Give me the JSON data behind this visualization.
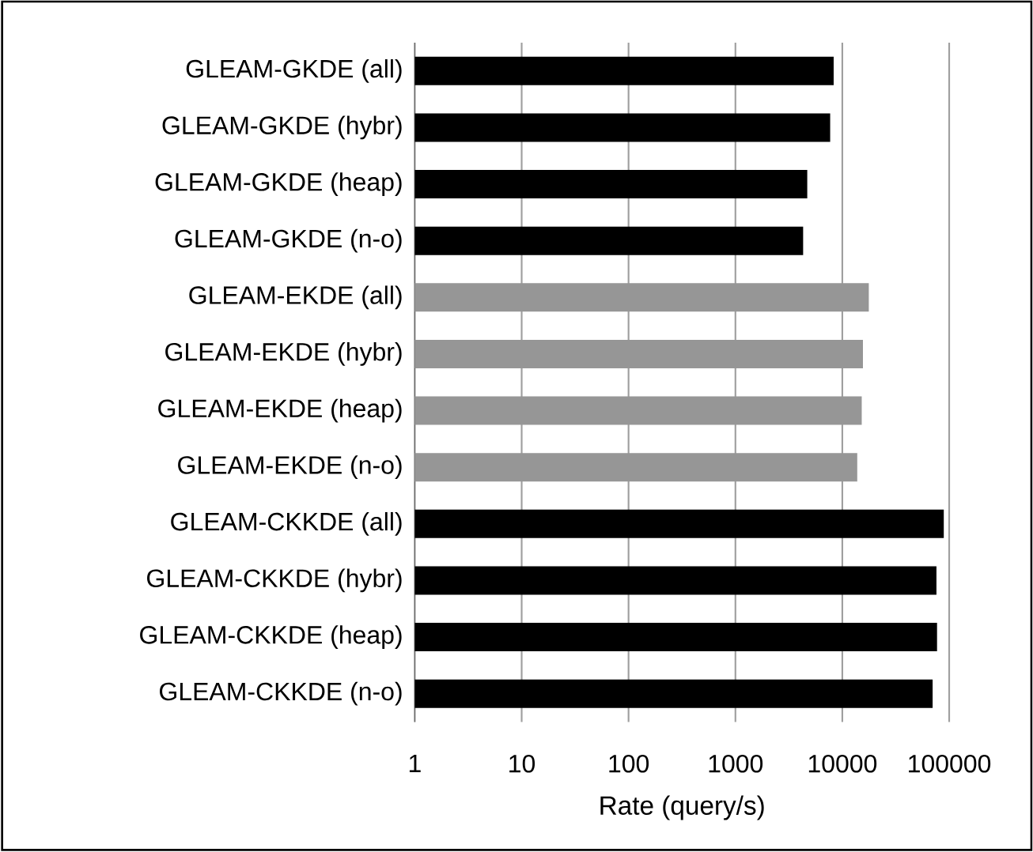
{
  "chart_data": {
    "type": "bar",
    "orientation": "horizontal",
    "xlabel": "Rate (query/s)",
    "categories": [
      "GLEAM-GKDE (all)",
      "GLEAM-GKDE (hybr)",
      "GLEAM-GKDE (heap)",
      "GLEAM-GKDE (n-o)",
      "GLEAM-EKDE (all)",
      "GLEAM-EKDE (hybr)",
      "GLEAM-EKDE (heap)",
      "GLEAM-EKDE (n-o)",
      "GLEAM-CKKDE (all)",
      "GLEAM-CKKDE (hybr)",
      "GLEAM-CKKDE (heap)",
      "GLEAM-CKKDE (n-o)"
    ],
    "values": [
      8300,
      7700,
      4700,
      4300,
      17700,
      15600,
      15200,
      13800,
      89000,
      76000,
      77000,
      70000
    ],
    "colors": [
      "#000000",
      "#000000",
      "#000000",
      "#000000",
      "#969696",
      "#969696",
      "#969696",
      "#969696",
      "#000000",
      "#000000",
      "#000000",
      "#000000"
    ],
    "log": "x",
    "xlim": [
      1,
      100000
    ],
    "xticks": [
      1,
      10,
      100,
      1000,
      10000,
      100000
    ],
    "grid": "x"
  }
}
